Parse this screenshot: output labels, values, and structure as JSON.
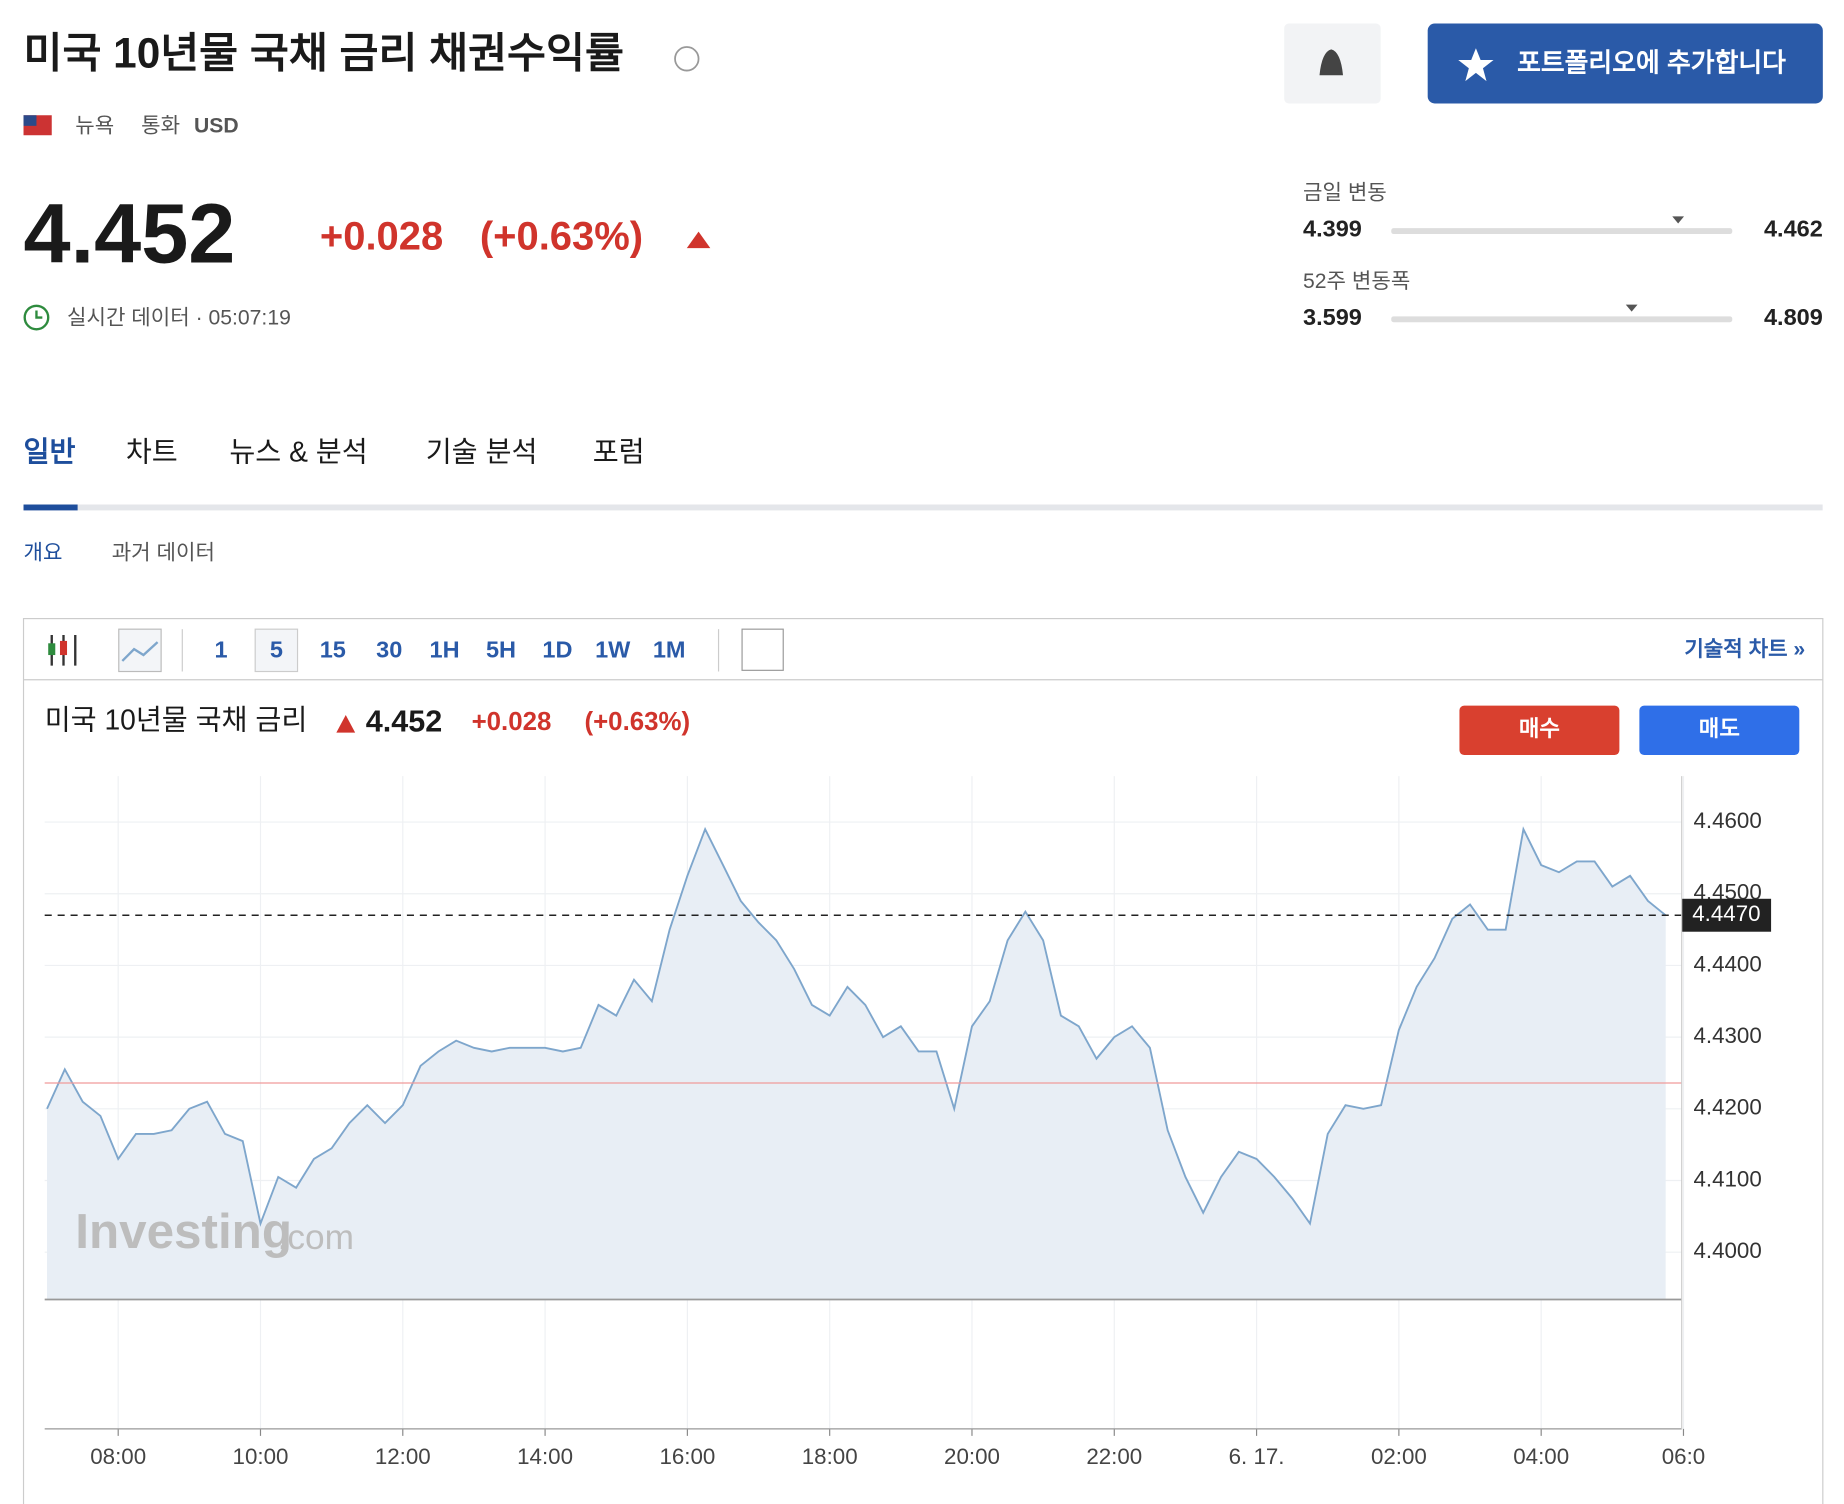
{
  "header": {
    "title": "미국 10년물 국채 금리 채권수익률",
    "exchange": "뉴욕",
    "currency_label": "통화",
    "currency": "USD",
    "alert_button": "",
    "portfolio_button": "포트폴리오에 추가합니다"
  },
  "quote": {
    "price": 4.452,
    "change": "+0.028",
    "change_pct": "(+0.63%)",
    "realtime": "실시간 데이터 · 05:07:19"
  },
  "ranges": [
    {
      "label": "금일 변동",
      "low": 4.399,
      "high": 4.462
    },
    {
      "label": "52주 변동폭",
      "low": 3.599,
      "high": 4.809
    }
  ],
  "tabs": [
    "일반",
    "차트",
    "뉴스 & 분석",
    "기술 분석",
    "포럼"
  ],
  "subtabs": [
    "개요",
    "과거 데이터"
  ],
  "toolbar": {
    "intervals": [
      "1",
      "5",
      "15",
      "30",
      "1H",
      "5H",
      "1D",
      "1W",
      "1M"
    ],
    "technical_link": "기술적 차트 »"
  },
  "chart_header": {
    "title": "미국 10년물 국채 금리",
    "buy": "매수",
    "sell": "매도"
  },
  "watermark": {
    "brand": "Investing",
    "suffix": ".com"
  },
  "chart_data": {
    "type": "area",
    "color": "#7ea6cc",
    "fill": "#e8eef5",
    "x": [
      "07:00",
      "07:15",
      "07:30",
      "07:45",
      "08:00",
      "08:15",
      "08:30",
      "08:45",
      "09:00",
      "09:15",
      "09:30",
      "09:45",
      "10:00",
      "10:15",
      "10:30",
      "10:45",
      "11:00",
      "11:15",
      "11:30",
      "11:45",
      "12:00",
      "12:15",
      "12:30",
      "12:45",
      "13:00",
      "13:15",
      "13:30",
      "13:45",
      "14:00",
      "14:15",
      "14:30",
      "14:45",
      "15:00",
      "15:15",
      "15:30",
      "15:45",
      "16:00",
      "16:15",
      "16:30",
      "16:45",
      "17:00",
      "17:15",
      "17:30",
      "17:45",
      "18:00",
      "18:15",
      "18:30",
      "18:45",
      "19:00",
      "19:15",
      "19:30",
      "19:45",
      "20:00",
      "20:15",
      "20:30",
      "20:45",
      "21:00",
      "21:15",
      "21:30",
      "21:45",
      "22:00",
      "22:15",
      "22:30",
      "22:45",
      "23:00",
      "23:15",
      "23:30",
      "23:45",
      "00:00",
      "00:15",
      "00:30",
      "00:45",
      "01:00",
      "01:15",
      "01:30",
      "01:45",
      "02:00",
      "02:15",
      "02:30",
      "02:45",
      "03:00",
      "03:15",
      "03:30",
      "03:45",
      "04:00",
      "04:15",
      "04:30",
      "04:45",
      "05:00",
      "05:15",
      "05:30",
      "05:45"
    ],
    "series": [
      {
        "name": "미국 10년물 국채 금리",
        "values": [
          4.42,
          4.4255,
          4.421,
          4.419,
          4.413,
          4.4165,
          4.4165,
          4.417,
          4.42,
          4.421,
          4.4165,
          4.4155,
          4.404,
          4.4105,
          4.409,
          4.413,
          4.4145,
          4.418,
          4.4205,
          4.418,
          4.4205,
          4.426,
          4.428,
          4.4295,
          4.4285,
          4.428,
          4.4285,
          4.4285,
          4.4285,
          4.428,
          4.4285,
          4.4345,
          4.433,
          4.438,
          4.435,
          4.445,
          4.4525,
          4.459,
          4.454,
          4.449,
          4.446,
          4.4435,
          4.4395,
          4.4345,
          4.433,
          4.437,
          4.4345,
          4.43,
          4.4315,
          4.428,
          4.428,
          4.42,
          4.4315,
          4.435,
          4.4435,
          4.4475,
          4.4435,
          4.433,
          4.4315,
          4.427,
          4.43,
          4.4315,
          4.4285,
          4.417,
          4.4105,
          4.4055,
          4.4105,
          4.414,
          4.413,
          4.4105,
          4.4075,
          4.404,
          4.4165,
          4.4205,
          4.42,
          4.4205,
          4.431,
          4.437,
          4.441,
          4.4465,
          4.4485,
          4.445,
          4.445,
          4.459,
          4.454,
          4.453,
          4.4545,
          4.4545,
          4.451,
          4.4525,
          4.449,
          4.447
        ]
      }
    ],
    "last_value": {
      "value": 4.447,
      "label": "4.4470"
    },
    "reference_line": 4.4236,
    "ylim": [
      4.3934,
      4.4664
    ],
    "yticks": [
      {
        "value": 4.4,
        "label": "4.4000"
      },
      {
        "value": 4.41,
        "label": "4.4100"
      },
      {
        "value": 4.42,
        "label": "4.4200"
      },
      {
        "value": 4.43,
        "label": "4.4300"
      },
      {
        "value": 4.44,
        "label": "4.4400"
      },
      {
        "value": 4.45,
        "label": "4.4500"
      },
      {
        "value": 4.46,
        "label": "4.4600"
      }
    ],
    "xticks": [
      "08:00",
      "10:00",
      "12:00",
      "14:00",
      "16:00",
      "18:00",
      "20:00",
      "22:00",
      {
        "value": "00:00",
        "label": "6. 17."
      },
      "02:00",
      "04:00",
      {
        "value": "06:00",
        "label": "06:0"
      }
    ],
    "grid": true
  }
}
